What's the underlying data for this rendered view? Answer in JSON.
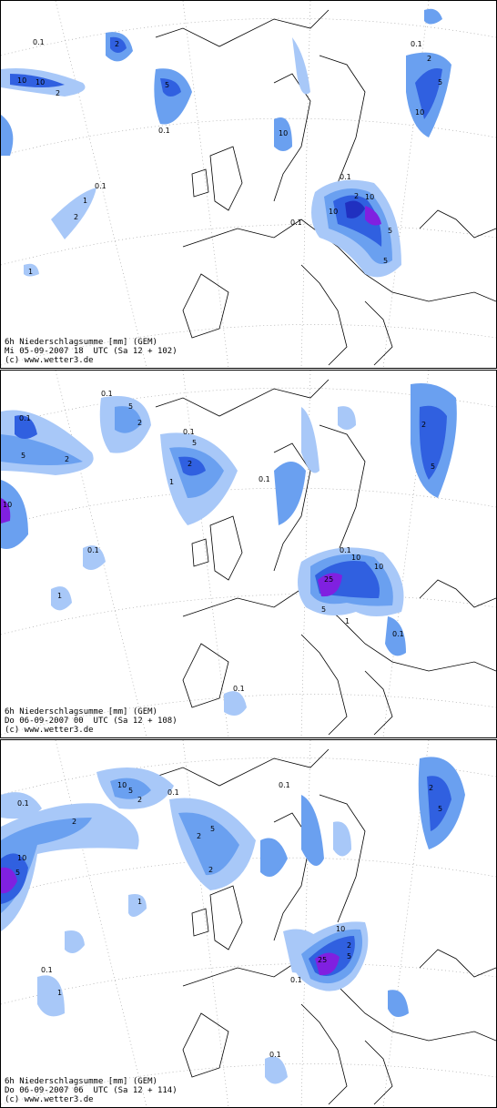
{
  "panels": [
    {
      "title": "6h Niederschlagsumme [mm] (GEM)",
      "time": "Mi 05-09-2007 18  UTC (Sa 12 + 102)",
      "copyright": "(c) www.wetter3.de",
      "contour_labels": [
        "0.1",
        "2",
        "10",
        "10",
        "2",
        "5",
        "0.1",
        "10",
        "0.1",
        "2",
        "5",
        "10",
        "0.1",
        "2",
        "10",
        "10",
        "5",
        "5",
        "0.1",
        "1",
        "2",
        "0.1",
        "1"
      ]
    },
    {
      "title": "6h Niederschlagsumme [mm] (GEM)",
      "time": "Do 06-09-2007 00  UTC (Sa 12 + 108)",
      "copyright": "(c) www.wetter3.de",
      "contour_labels": [
        "0.1",
        "5",
        "2",
        "10",
        "0.1",
        "5",
        "2",
        "0.1",
        "1",
        "5",
        "2",
        "0.1",
        "2",
        "5",
        "0.1",
        "1",
        "0.1",
        "10",
        "25",
        "10",
        "5",
        "0.1",
        "1",
        "0.1"
      ]
    },
    {
      "title": "6h Niederschlagsumme [mm] (GEM)",
      "time": "Do 06-09-2007 06  UTC (Sa 12 + 114)",
      "copyright": "(c) www.wetter3.de",
      "contour_labels": [
        "0.1",
        "10",
        "2",
        "5",
        "10",
        "5",
        "2",
        "0.1",
        "5",
        "2",
        "2",
        "5",
        "2",
        "0.1",
        "2",
        "10",
        "25",
        "5",
        "0.1",
        "1",
        "0.1",
        "1",
        "0.1"
      ]
    }
  ],
  "colors": {
    "precip_light": "#a8c8f8",
    "precip_mid": "#6aa0f0",
    "precip_dark": "#3060e0",
    "precip_heavy": "#2030c0",
    "precip_extreme": "#8020e0",
    "coast": "#000000",
    "grid": "#999999"
  }
}
